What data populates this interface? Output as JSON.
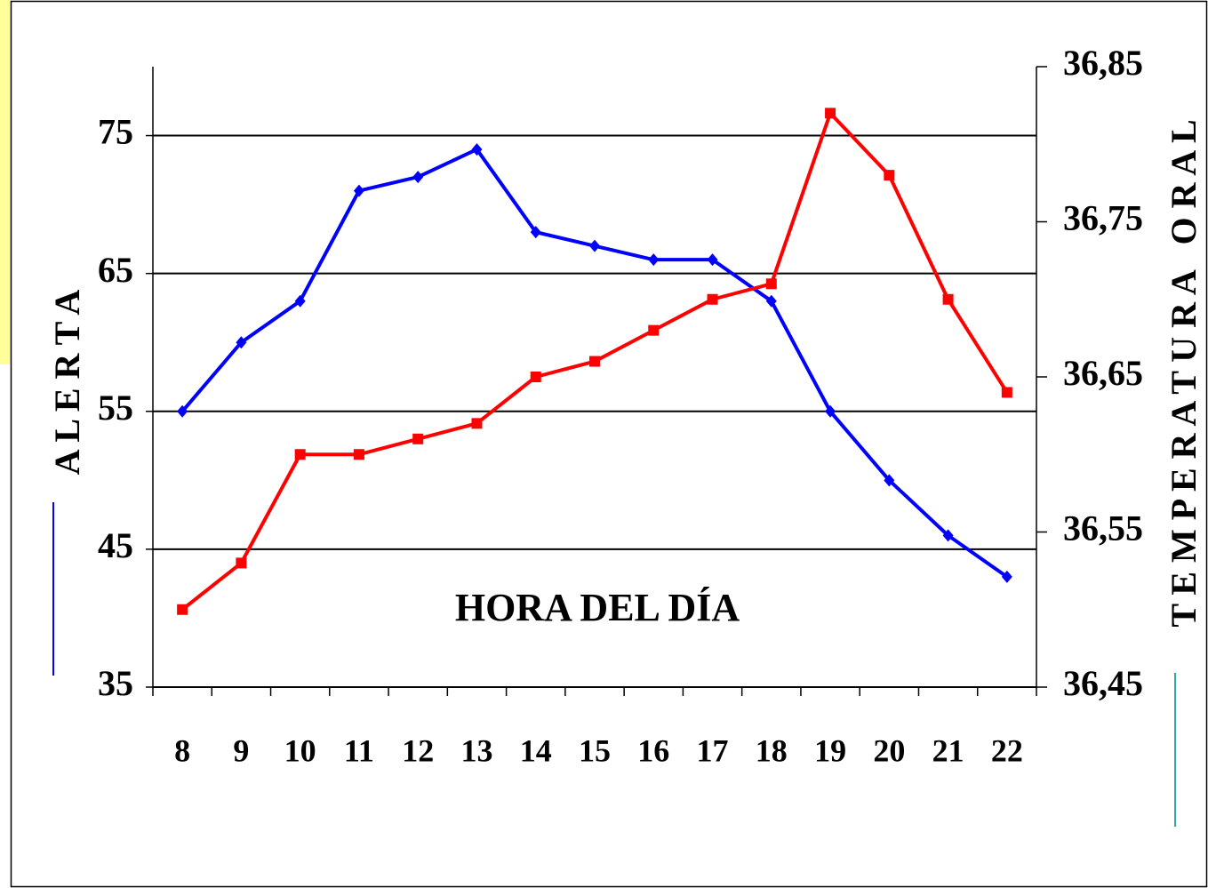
{
  "chart_data": {
    "type": "line",
    "categories": [
      8,
      9,
      10,
      11,
      12,
      13,
      14,
      15,
      16,
      17,
      18,
      19,
      20,
      21,
      22
    ],
    "x_label": "HORA DEL DÍA",
    "y_label": "A L E R T A",
    "y2_label": "T E M P E R A T U R A   O R A L",
    "ylim": [
      35,
      80
    ],
    "yticks": [
      35,
      45,
      55,
      65,
      75
    ],
    "y2lim": [
      36.45,
      36.85
    ],
    "y2ticks": [
      {
        "value": 36.45,
        "label": "36,45"
      },
      {
        "value": 36.55,
        "label": "36,55"
      },
      {
        "value": 36.65,
        "label": "36,65"
      },
      {
        "value": 36.75,
        "label": "36,75"
      },
      {
        "value": 36.85,
        "label": "36,85"
      }
    ],
    "grid": true,
    "series": [
      {
        "name": "Alerta",
        "color": "#0000ff",
        "marker": "diamond",
        "values": [
          55,
          60,
          63,
          71,
          72,
          74,
          68,
          67,
          66,
          66,
          63,
          55,
          50,
          46,
          43
        ]
      },
      {
        "name": "Temperatura oral",
        "color": "#ff0000",
        "marker": "square",
        "axis": "y2",
        "values": [
          36.5,
          36.53,
          36.6,
          36.6,
          36.61,
          36.62,
          36.65,
          36.66,
          36.68,
          36.7,
          36.71,
          36.82,
          36.78,
          36.7,
          36.64
        ]
      }
    ]
  }
}
